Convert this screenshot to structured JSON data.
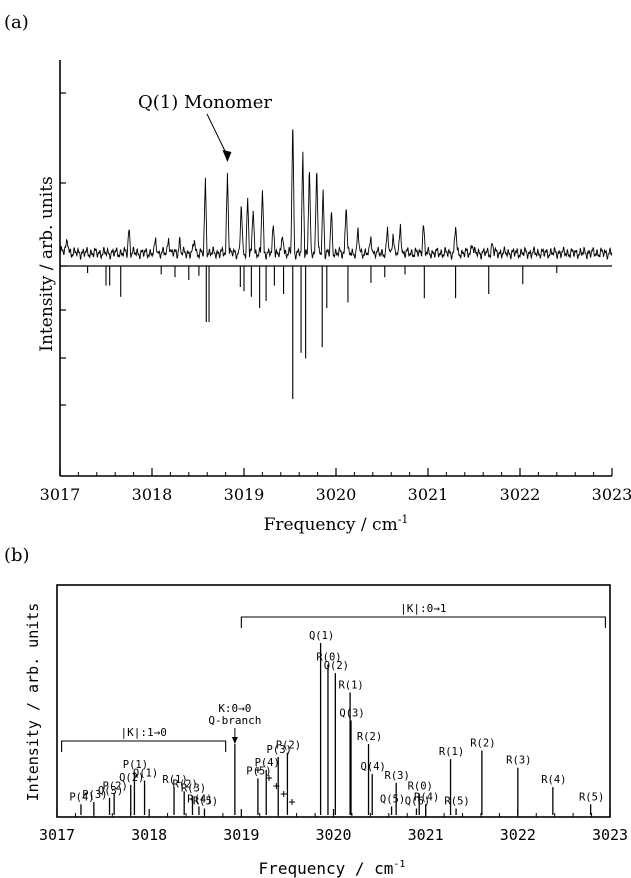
{
  "chart_data": [
    {
      "type": "line",
      "panel_label": "(a)",
      "xlabel": "Frequency / cm",
      "xlabel_sup": "-1",
      "ylabel": "Intensity / arb. units",
      "xlim": [
        3017,
        3023
      ],
      "x_ticks": [
        "3017",
        "3018",
        "3019",
        "3020",
        "3021",
        "3022",
        "3023"
      ],
      "annotation": {
        "text": "Q(1) Monomer",
        "x": 3018.82
      },
      "observed_peaks": [
        {
          "x": 3017.08,
          "y": 8
        },
        {
          "x": 3017.75,
          "y": 18
        },
        {
          "x": 3018.04,
          "y": 10
        },
        {
          "x": 3018.18,
          "y": 12
        },
        {
          "x": 3018.3,
          "y": 9
        },
        {
          "x": 3018.46,
          "y": 10
        },
        {
          "x": 3018.58,
          "y": 52
        },
        {
          "x": 3018.82,
          "y": 60
        },
        {
          "x": 3018.97,
          "y": 36
        },
        {
          "x": 3019.04,
          "y": 40
        },
        {
          "x": 3019.1,
          "y": 33
        },
        {
          "x": 3019.2,
          "y": 47
        },
        {
          "x": 3019.32,
          "y": 21
        },
        {
          "x": 3019.42,
          "y": 14
        },
        {
          "x": 3019.53,
          "y": 95
        },
        {
          "x": 3019.64,
          "y": 73
        },
        {
          "x": 3019.71,
          "y": 61
        },
        {
          "x": 3019.79,
          "y": 65
        },
        {
          "x": 3019.86,
          "y": 44
        },
        {
          "x": 3019.95,
          "y": 29
        },
        {
          "x": 3020.11,
          "y": 37
        },
        {
          "x": 3020.24,
          "y": 17
        },
        {
          "x": 3020.38,
          "y": 12
        },
        {
          "x": 3020.56,
          "y": 17
        },
        {
          "x": 3020.62,
          "y": 15
        },
        {
          "x": 3020.7,
          "y": 21
        },
        {
          "x": 3020.95,
          "y": 22
        },
        {
          "x": 3021.3,
          "y": 20
        },
        {
          "x": 3021.48,
          "y": 8
        },
        {
          "x": 3021.7,
          "y": 7
        }
      ],
      "calculated_sticks": [
        {
          "x": 3017.3,
          "y": 5
        },
        {
          "x": 3017.5,
          "y": 14
        },
        {
          "x": 3017.54,
          "y": 14
        },
        {
          "x": 3017.66,
          "y": 22
        },
        {
          "x": 3018.1,
          "y": 6
        },
        {
          "x": 3018.25,
          "y": 8
        },
        {
          "x": 3018.4,
          "y": 10
        },
        {
          "x": 3018.51,
          "y": 7
        },
        {
          "x": 3018.59,
          "y": 40
        },
        {
          "x": 3018.62,
          "y": 40
        },
        {
          "x": 3018.96,
          "y": 15
        },
        {
          "x": 3019.0,
          "y": 18
        },
        {
          "x": 3019.08,
          "y": 22
        },
        {
          "x": 3019.17,
          "y": 30
        },
        {
          "x": 3019.24,
          "y": 25
        },
        {
          "x": 3019.33,
          "y": 14
        },
        {
          "x": 3019.43,
          "y": 20
        },
        {
          "x": 3019.53,
          "y": 95
        },
        {
          "x": 3019.62,
          "y": 62
        },
        {
          "x": 3019.67,
          "y": 66
        },
        {
          "x": 3019.85,
          "y": 58
        },
        {
          "x": 3019.9,
          "y": 30
        },
        {
          "x": 3020.13,
          "y": 26
        },
        {
          "x": 3020.38,
          "y": 12
        },
        {
          "x": 3020.53,
          "y": 8
        },
        {
          "x": 3020.75,
          "y": 6
        },
        {
          "x": 3020.96,
          "y": 23
        },
        {
          "x": 3021.3,
          "y": 23
        },
        {
          "x": 3021.66,
          "y": 20
        },
        {
          "x": 3022.03,
          "y": 13
        },
        {
          "x": 3022.4,
          "y": 5
        }
      ]
    },
    {
      "type": "bar",
      "panel_label": "(b)",
      "xlabel": "Frequency / cm",
      "xlabel_sup": "-1",
      "ylabel": "Intensity / arb. units",
      "xlim": [
        3017,
        3023
      ],
      "x_ticks": [
        "3017",
        "3018",
        "3019",
        "3020",
        "3021",
        "3022",
        "3023"
      ],
      "bands": [
        {
          "label": "|K|:1→0",
          "x_start": 3017.05,
          "x_end": 3018.83
        },
        {
          "label": "|K|:0→1",
          "x_start": 3019.0,
          "x_end": 3022.95
        }
      ],
      "sticks": [
        {
          "label": "P(4)",
          "x": 3017.26,
          "y": 5
        },
        {
          "label": "P(3)",
          "x": 3017.4,
          "y": 6
        },
        {
          "label": "Q(3)",
          "x": 3017.57,
          "y": 8
        },
        {
          "label": "P(2)",
          "x": 3017.62,
          "y": 10
        },
        {
          "label": "Q(2)",
          "x": 3017.8,
          "y": 14
        },
        {
          "label": "P(1)",
          "x": 3017.84,
          "y": 20
        },
        {
          "label": "Q(1)",
          "x": 3017.95,
          "y": 16
        },
        {
          "label": "R(1)",
          "x": 3018.27,
          "y": 13
        },
        {
          "label": "R(2)",
          "x": 3018.38,
          "y": 11
        },
        {
          "label": "R(3)",
          "x": 3018.47,
          "y": 9
        },
        {
          "label": "R(4)",
          "x": 3018.54,
          "y": 4
        },
        {
          "label": "R(5)",
          "x": 3018.6,
          "y": 3
        },
        {
          "label": "K:0→0 Q-branch",
          "x": 3018.93,
          "y": 33
        },
        {
          "label": "P(5)",
          "x": 3019.18,
          "y": 17
        },
        {
          "label": "P(4)",
          "x": 3019.27,
          "y": 21
        },
        {
          "label": "P(3)",
          "x": 3019.4,
          "y": 27
        },
        {
          "label": "P(2)",
          "x": 3019.5,
          "y": 29
        },
        {
          "label": "Q(1)",
          "x": 3019.86,
          "y": 80
        },
        {
          "label": "R(0)",
          "x": 3019.94,
          "y": 70
        },
        {
          "label": "Q(2)",
          "x": 3020.02,
          "y": 66
        },
        {
          "label": "R(1)",
          "x": 3020.18,
          "y": 57
        },
        {
          "label": "Q(3)",
          "x": 3020.19,
          "y": 44
        },
        {
          "label": "R(2)",
          "x": 3020.38,
          "y": 33
        },
        {
          "label": "Q(4)",
          "x": 3020.42,
          "y": 19
        },
        {
          "label": "R(3)",
          "x": 3020.68,
          "y": 15
        },
        {
          "label": "Q(5)",
          "x": 3020.63,
          "y": 4
        },
        {
          "label": "R(0)",
          "x": 3020.93,
          "y": 10
        },
        {
          "label": "Q(6)",
          "x": 3020.9,
          "y": 3
        },
        {
          "label": "R(4)",
          "x": 3021.0,
          "y": 5
        },
        {
          "label": "R(1)",
          "x": 3021.27,
          "y": 26
        },
        {
          "label": "R(5)",
          "x": 3021.33,
          "y": 3
        },
        {
          "label": "R(2)",
          "x": 3021.61,
          "y": 30
        },
        {
          "label": "R(3)",
          "x": 3022.0,
          "y": 22
        },
        {
          "label": "R(4)",
          "x": 3022.38,
          "y": 13
        },
        {
          "label": "R(5)",
          "x": 3022.79,
          "y": 5
        }
      ],
      "crosses_x": [
        3019.18,
        3019.3,
        3019.38,
        3019.46,
        3019.55
      ]
    }
  ]
}
